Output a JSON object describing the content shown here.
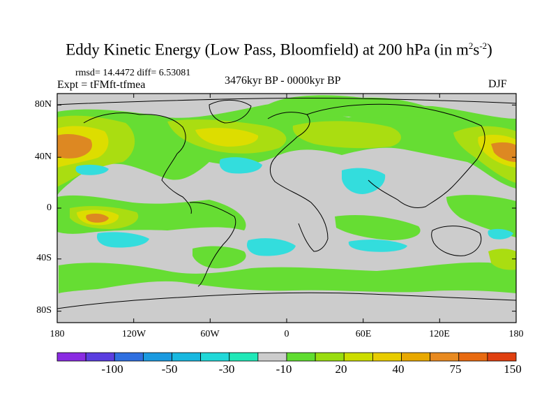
{
  "title": {
    "main": "Eddy Kinetic Energy (Low Pass, Bloomfield) at 200 hPa (in m",
    "exp1": "2",
    "mid": "s",
    "exp2": "-2",
    "close": ")"
  },
  "stats": "rmsd= 14.4472 diff= 6.53081",
  "experiment": "Expt = tFMft-tfmea",
  "period": "3476kyr BP - 0000kyr BP",
  "season": "DJF",
  "axes": {
    "y_ticks": [
      "80N",
      "40N",
      "0",
      "40S",
      "80S"
    ],
    "x_ticks": [
      "180",
      "120W",
      "60W",
      "0",
      "60E",
      "120E",
      "180"
    ]
  },
  "colorbar": {
    "colors": [
      "#8a2be2",
      "#5a3ee0",
      "#2f6fe0",
      "#1a9ae0",
      "#18b8e0",
      "#20d8d8",
      "#20e8b8",
      "#cccccc",
      "#60dd30",
      "#99dd10",
      "#ccdd00",
      "#e8cc00",
      "#e8a800",
      "#e88a20",
      "#e86a10",
      "#e04010"
    ],
    "labels": [
      "-100",
      "-50",
      "-30",
      "-10",
      "20",
      "40",
      "75",
      "150"
    ]
  },
  "map_colors": {
    "ocean_default": "#cccccc",
    "green": "#66dd33",
    "yellow_green": "#aadd11",
    "yellow": "#dddd00",
    "orange": "#e0a010",
    "dark_orange": "#dd8822",
    "cyan": "#33dddd",
    "light_blue": "#22ccee",
    "coast": "#000000"
  }
}
